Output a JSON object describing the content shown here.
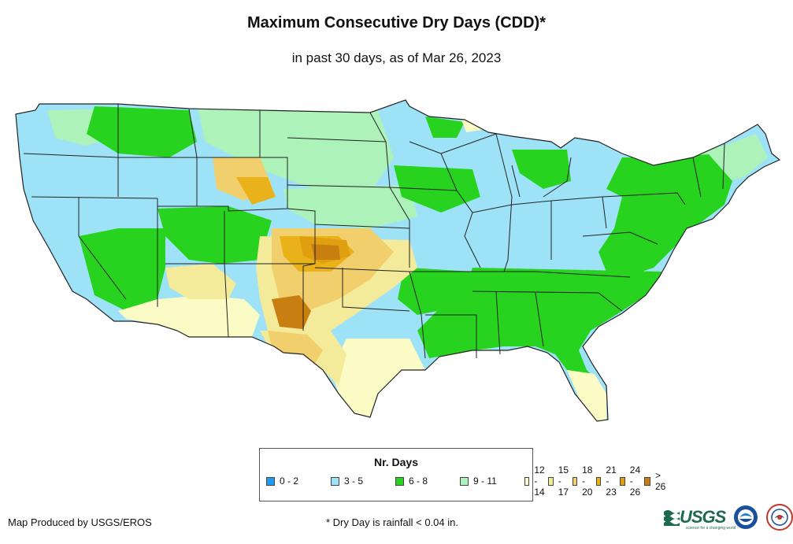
{
  "header": {
    "title": "Maximum Consecutive Dry Days (CDD)*",
    "subtitle": "in past 30 days, as of Mar 26, 2023"
  },
  "legend": {
    "title": "Nr. Days",
    "items": [
      {
        "label": "0 - 2",
        "color": "#1f9bf0"
      },
      {
        "label": "3 - 5",
        "color": "#9ee2f7"
      },
      {
        "label": "6 - 8",
        "color": "#27d31f"
      },
      {
        "label": "9 - 11",
        "color": "#adf2b9"
      },
      {
        "label": "12 - 14",
        "color": "#fbfbc6"
      },
      {
        "label": "15 - 17",
        "color": "#f4eb9a"
      },
      {
        "label": "18 - 20",
        "color": "#f1cf6d"
      },
      {
        "label": "21 - 23",
        "color": "#e9b21b"
      },
      {
        "label": "24 - 26",
        "color": "#e09f0f"
      },
      {
        "label": "> 26",
        "color": "#c97f10"
      }
    ]
  },
  "footer": {
    "credit": "Map Produced by USGS/EROS",
    "footnote": "* Dry Day is rainfall < 0.04 in.",
    "usgs_logo": "USGS",
    "usgs_tagline": "science for a changing world"
  },
  "map": {
    "region": "Contiguous United States",
    "border_color": "#222222"
  }
}
